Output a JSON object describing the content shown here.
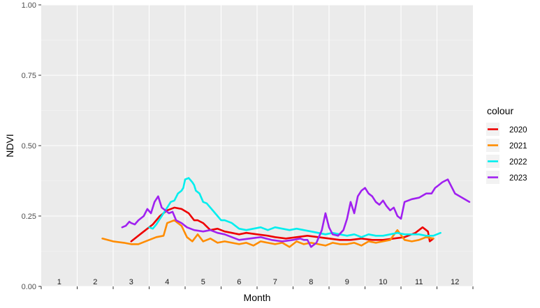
{
  "chart_data": {
    "type": "line",
    "title": "",
    "xlabel": "Month",
    "ylabel": "NDVI",
    "ylim": [
      0,
      1
    ],
    "xlim": [
      0.5,
      12.5
    ],
    "y_ticks": [
      0,
      0.25,
      0.5,
      0.75,
      1
    ],
    "y_tick_labels": [
      "0.00",
      "0.25",
      "0.50",
      "0.75",
      "1.00"
    ],
    "month_labels": [
      "1",
      "2",
      "3",
      "4",
      "5",
      "6",
      "7",
      "8",
      "9",
      "10",
      "11",
      "12"
    ],
    "grid": true,
    "legend": {
      "title": "colour",
      "position": "right"
    },
    "series": [
      {
        "name": "2020",
        "color": "#ee0000",
        "x": [
          3.0,
          3.3,
          3.6,
          3.8,
          4.0,
          4.2,
          4.4,
          4.6,
          4.75,
          4.85,
          5.0,
          5.2,
          5.4,
          5.6,
          5.8,
          6.0,
          6.2,
          6.5,
          6.8,
          7.0,
          7.3,
          7.6,
          7.9,
          8.2,
          8.5,
          8.8,
          9.1,
          9.4,
          9.7,
          10.0,
          10.3,
          10.6,
          10.9,
          11.1,
          11.25,
          11.3,
          11.4
        ],
        "y": [
          0.16,
          0.19,
          0.22,
          0.25,
          0.27,
          0.28,
          0.275,
          0.26,
          0.235,
          0.235,
          0.225,
          0.2,
          0.205,
          0.195,
          0.19,
          0.185,
          0.19,
          0.185,
          0.18,
          0.175,
          0.17,
          0.175,
          0.18,
          0.175,
          0.17,
          0.165,
          0.165,
          0.17,
          0.165,
          0.165,
          0.17,
          0.175,
          0.19,
          0.21,
          0.195,
          0.16,
          0.17
        ]
      },
      {
        "name": "2021",
        "color": "#ff8c00",
        "x": [
          2.2,
          2.5,
          2.8,
          3.0,
          3.2,
          3.5,
          3.7,
          3.9,
          4.0,
          4.2,
          4.4,
          4.55,
          4.7,
          4.85,
          5.0,
          5.2,
          5.4,
          5.6,
          5.8,
          6.0,
          6.2,
          6.4,
          6.6,
          6.8,
          7.0,
          7.2,
          7.4,
          7.6,
          7.8,
          8.0,
          8.2,
          8.4,
          8.6,
          8.8,
          9.0,
          9.2,
          9.4,
          9.6,
          9.8,
          10.0,
          10.2,
          10.4,
          10.6,
          10.8,
          11.0,
          11.2,
          11.4
        ],
        "y": [
          0.17,
          0.16,
          0.155,
          0.15,
          0.15,
          0.165,
          0.175,
          0.18,
          0.225,
          0.235,
          0.215,
          0.175,
          0.16,
          0.185,
          0.16,
          0.17,
          0.155,
          0.16,
          0.155,
          0.15,
          0.155,
          0.145,
          0.16,
          0.155,
          0.15,
          0.155,
          0.14,
          0.16,
          0.15,
          0.155,
          0.15,
          0.145,
          0.155,
          0.15,
          0.15,
          0.155,
          0.145,
          0.16,
          0.155,
          0.16,
          0.165,
          0.2,
          0.165,
          0.16,
          0.165,
          0.175,
          0.17
        ]
      },
      {
        "name": "2022",
        "color": "#00eeee",
        "x": [
          3.5,
          3.6,
          3.7,
          3.8,
          3.9,
          4.0,
          4.1,
          4.2,
          4.3,
          4.4,
          4.45,
          4.5,
          4.6,
          4.7,
          4.75,
          4.8,
          4.9,
          5.0,
          5.1,
          5.2,
          5.3,
          5.4,
          5.5,
          5.6,
          5.8,
          6.0,
          6.2,
          6.4,
          6.6,
          6.8,
          7.0,
          7.2,
          7.4,
          7.6,
          7.8,
          8.0,
          8.2,
          8.4,
          8.6,
          8.8,
          9.0,
          9.2,
          9.4,
          9.6,
          9.8,
          10.0,
          10.2,
          10.4,
          10.6,
          10.8,
          11.0,
          11.2,
          11.4,
          11.6
        ],
        "y": [
          0.21,
          0.205,
          0.22,
          0.24,
          0.26,
          0.28,
          0.3,
          0.305,
          0.33,
          0.34,
          0.35,
          0.38,
          0.385,
          0.37,
          0.36,
          0.34,
          0.33,
          0.3,
          0.295,
          0.28,
          0.265,
          0.25,
          0.235,
          0.235,
          0.225,
          0.205,
          0.2,
          0.205,
          0.21,
          0.2,
          0.21,
          0.205,
          0.2,
          0.205,
          0.2,
          0.195,
          0.19,
          0.185,
          0.19,
          0.185,
          0.18,
          0.185,
          0.175,
          0.185,
          0.18,
          0.18,
          0.185,
          0.19,
          0.185,
          0.185,
          0.185,
          0.18,
          0.18,
          0.19
        ]
      },
      {
        "name": "2023",
        "color": "#a020f0",
        "x": [
          2.75,
          2.85,
          2.95,
          3.0,
          3.1,
          3.2,
          3.35,
          3.45,
          3.55,
          3.65,
          3.75,
          3.85,
          3.95,
          4.05,
          4.15,
          4.25,
          4.4,
          4.55,
          4.75,
          5.0,
          5.2,
          5.4,
          5.6,
          5.8,
          6.0,
          6.3,
          6.6,
          6.9,
          7.2,
          7.5,
          7.7,
          7.8,
          7.9,
          8.0,
          8.15,
          8.3,
          8.4,
          8.5,
          8.6,
          8.75,
          8.9,
          9.0,
          9.1,
          9.2,
          9.3,
          9.4,
          9.5,
          9.6,
          9.7,
          9.8,
          9.9,
          10.0,
          10.1,
          10.2,
          10.3,
          10.4,
          10.5,
          10.6,
          10.8,
          11.0,
          11.2,
          11.35,
          11.45,
          11.55,
          11.65,
          11.8,
          12.0,
          12.4
        ],
        "y": [
          0.21,
          0.215,
          0.23,
          0.225,
          0.22,
          0.235,
          0.25,
          0.275,
          0.26,
          0.3,
          0.32,
          0.28,
          0.27,
          0.26,
          0.265,
          0.235,
          0.225,
          0.21,
          0.2,
          0.195,
          0.2,
          0.19,
          0.185,
          0.175,
          0.165,
          0.17,
          0.175,
          0.165,
          0.16,
          0.165,
          0.17,
          0.165,
          0.165,
          0.14,
          0.155,
          0.2,
          0.26,
          0.21,
          0.185,
          0.18,
          0.2,
          0.24,
          0.3,
          0.26,
          0.32,
          0.34,
          0.35,
          0.33,
          0.32,
          0.3,
          0.29,
          0.305,
          0.285,
          0.27,
          0.28,
          0.25,
          0.24,
          0.3,
          0.31,
          0.315,
          0.33,
          0.33,
          0.35,
          0.36,
          0.37,
          0.38,
          0.33,
          0.3
        ]
      }
    ]
  }
}
